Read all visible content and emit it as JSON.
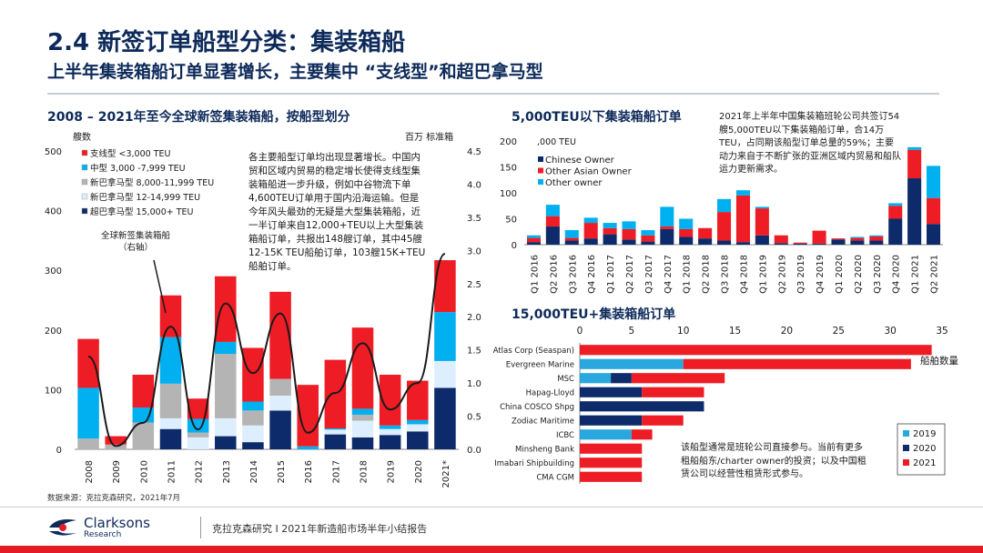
{
  "header": {
    "title": "2.4 新签订单船型分类：集装箱船",
    "subtitle": "上半年集装箱船订单显著增长，主要集中 “支线型”和超巴拿马型"
  },
  "footer": {
    "source": "数据来源：克拉克森研究，2021年7月",
    "report": "克拉克森研究 I 2021年新造船市场半年小结报告",
    "logo_name": "Clarksons",
    "logo_sub": "Research"
  },
  "colors": {
    "red": "#ee1c24",
    "blue": "#00b0f0",
    "dark_blue": "#0d2a6a",
    "grey": "#b4b4b4",
    "light_blue": "#ddeeff",
    "navy_text": "#0d2a5a",
    "light_blue_2019": "#29a8e0",
    "navy_2020": "#0d2a6a",
    "red_2021": "#ee1c24"
  },
  "left_chart": {
    "title": "2008 – 2021年至今全球新签集装箱船，按船型划分",
    "ylabel_left": "艘数",
    "ylabel_right": "百万 标准箱",
    "left_ticks": [
      "0",
      "100",
      "200",
      "300",
      "400",
      "500"
    ],
    "right_ticks": [
      "0.0",
      "0.5",
      "1.0",
      "1.5",
      "2.0",
      "2.5",
      "3.0",
      "3.5",
      "4.0",
      "4.5"
    ],
    "legend": [
      "支线型 <3,000 TEU",
      "中型 3,000 -7,999 TEU",
      "新巴拿马型 8,000-11,999 TEU",
      "新巴拿马型 12-14,999 TEU",
      "超巴拿马型 15,000+ TEU"
    ],
    "line_label": "全球新签集装箱船\n（右轴）",
    "note": "各主要船型订单均出现显著增长。中国内贸和区域内贸易的稳定增长使得支线型集装箱船进一步升级，例如中谷物流下单4,600TEU订单用于国内沿海运输。但是今年风头最劲的无疑是大型集装箱船，近一半订单来自12,000+TEU以上大型集装箱船订单，共报出148艘订单，其中45艘12-15K TEU船舶订单，103艘15K+TEU船舶订单。"
  },
  "top_right": {
    "title": "5,000TEU以下集装箱船订单",
    "unit": ",000 TEU",
    "ticks": [
      "0",
      "50",
      "100",
      "150",
      "200"
    ],
    "legend": [
      "Chinese Owner",
      "Other Asian Owner",
      "Other owner"
    ],
    "note": "2021年上半年中国集装箱班轮公司共签订54艘5,000TEU以下集装箱船订单，合14万TEU，占同期该船型订单总量的59%；主要动力来自于不断扩张的亚洲区域内贸易和船队运力更新需求。"
  },
  "bottom_right": {
    "title": "15,000TEU+集装箱船订单",
    "ticks": [
      "0",
      "5",
      "10",
      "15",
      "20",
      "25",
      "30",
      "35"
    ],
    "value_label": "船舶数量",
    "legend": [
      "2019",
      "2020",
      "2021"
    ],
    "note": "该船型通常是班轮公司直接参与。当前有更多租船船东/charter owner的投资；以及中国租赁公司以经营性租赁形式参与。"
  },
  "chart_data": [
    {
      "type": "bar",
      "stacked": true,
      "categories": [
        "2008",
        "2009",
        "2010",
        "2011",
        "2012",
        "2013",
        "2014",
        "2015",
        "2016",
        "2017",
        "2018",
        "2019",
        "2020",
        "2021*"
      ],
      "ylim": [
        0,
        500
      ],
      "y2lim": [
        0,
        4.5
      ],
      "series": [
        {
          "name": "超巴拿马型 15,000+ TEU",
          "values": [
            0,
            0,
            0,
            34,
            0,
            22,
            12,
            65,
            0,
            25,
            20,
            24,
            30,
            103
          ]
        },
        {
          "name": "新巴拿马型 12-14,999 TEU",
          "values": [
            0,
            0,
            0,
            18,
            20,
            30,
            28,
            25,
            0,
            8,
            28,
            10,
            12,
            45
          ]
        },
        {
          "name": "新巴拿马型 8,000-11,999 TEU",
          "values": [
            18,
            8,
            45,
            58,
            8,
            108,
            25,
            28,
            0,
            0,
            10,
            0,
            0,
            0
          ]
        },
        {
          "name": "中型 3,000 -7,999 TEU",
          "values": [
            85,
            0,
            25,
            78,
            23,
            20,
            15,
            0,
            5,
            2,
            10,
            6,
            7,
            82
          ]
        },
        {
          "name": "支线型 <3,000 TEU",
          "values": [
            82,
            14,
            55,
            70,
            34,
            110,
            90,
            146,
            103,
            115,
            136,
            85,
            66,
            87
          ]
        }
      ],
      "line": {
        "name": "全球新签集装箱船",
        "axis": "right",
        "values": [
          1.4,
          0.05,
          0.4,
          1.85,
          0.3,
          2.2,
          1.15,
          2.05,
          0.25,
          0.85,
          1.6,
          0.6,
          1.0,
          2.95
        ]
      }
    },
    {
      "type": "bar",
      "stacked": true,
      "categories": [
        "Q1 2016",
        "Q2 2016",
        "Q3 2016",
        "Q4 2016",
        "Q1 2017",
        "Q2 2017",
        "Q3 2017",
        "Q4 2017",
        "Q1 2018",
        "Q2 2018",
        "Q3 2018",
        "Q4 2018",
        "Q1 2019",
        "Q2 2019",
        "Q3 2019",
        "Q4 2019",
        "Q1 2020",
        "Q2 2020",
        "Q3 2020",
        "Q4 2020",
        "Q1 2021",
        "Q2 2021"
      ],
      "ylim": [
        0,
        200
      ],
      "series": [
        {
          "name": "Chinese Owner",
          "values": [
            5,
            35,
            8,
            12,
            20,
            10,
            6,
            30,
            15,
            12,
            8,
            5,
            18,
            3,
            2,
            2,
            10,
            8,
            8,
            50,
            128,
            40
          ]
        },
        {
          "name": "Other Asian Owner",
          "values": [
            8,
            20,
            5,
            30,
            12,
            20,
            12,
            5,
            15,
            20,
            55,
            90,
            52,
            15,
            2,
            25,
            2,
            5,
            8,
            25,
            55,
            50
          ]
        },
        {
          "name": "Other owner",
          "values": [
            5,
            22,
            15,
            10,
            10,
            15,
            10,
            38,
            20,
            0,
            25,
            10,
            3,
            0,
            0,
            0,
            0,
            2,
            2,
            5,
            5,
            62
          ]
        }
      ]
    },
    {
      "type": "bar",
      "orientation": "horizontal",
      "stacked": true,
      "categories": [
        "Atlas Corp (Seaspan)",
        "Evergreen Marine",
        "MSC",
        "Hapag-Lloyd",
        "China COSCO Shpg",
        "Zodiac Maritime",
        "ICBC",
        "Minsheng Bank",
        "Imabari Shipbuilding",
        "CMA CGM"
      ],
      "xlim": [
        0,
        35
      ],
      "series": [
        {
          "name": "2019",
          "values": [
            0,
            10,
            3,
            0,
            0,
            0,
            5,
            0,
            0,
            0
          ]
        },
        {
          "name": "2020",
          "values": [
            0,
            0,
            2,
            6,
            12,
            6,
            0,
            0,
            0,
            0
          ]
        },
        {
          "name": "2021",
          "values": [
            34,
            22,
            9,
            6,
            0,
            4,
            2,
            6,
            6,
            6
          ]
        }
      ]
    }
  ]
}
